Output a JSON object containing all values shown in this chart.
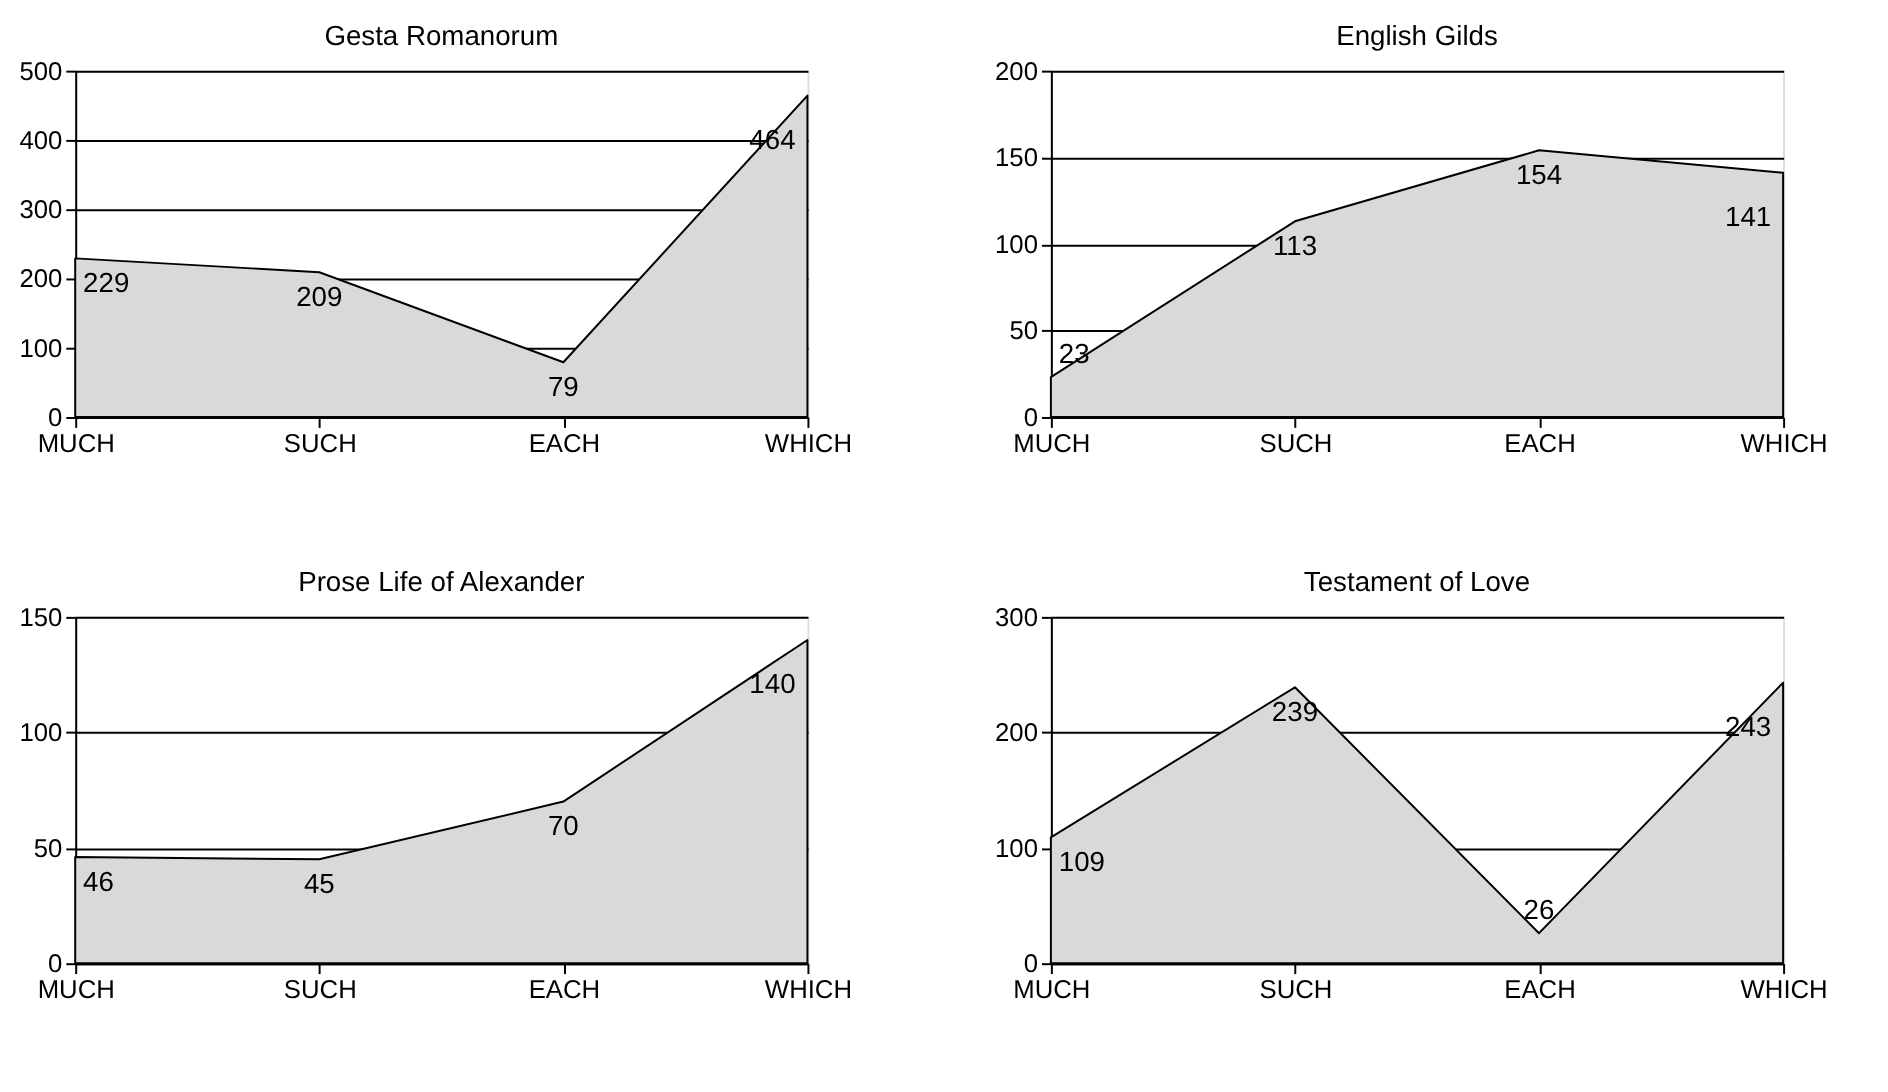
{
  "chart_data": [
    {
      "type": "area",
      "title": "Gesta Romanorum",
      "categories": [
        "MUCH",
        "SUCH",
        "EACH",
        "WHICH"
      ],
      "values": [
        229,
        209,
        79,
        464
      ],
      "color": "#d9d9d9",
      "ylim": [
        0,
        500
      ],
      "yticks": [
        0,
        100,
        200,
        300,
        400,
        500
      ],
      "grid": "y",
      "data_labels": true
    },
    {
      "type": "area",
      "title": "English Gilds",
      "categories": [
        "MUCH",
        "SUCH",
        "EACH",
        "WHICH"
      ],
      "values": [
        23,
        113,
        154,
        141
      ],
      "color": "#d9d9d9",
      "ylim": [
        0,
        200
      ],
      "yticks": [
        0,
        50,
        100,
        150,
        200
      ],
      "grid": "y",
      "data_labels": true
    },
    {
      "type": "area",
      "title": "Prose Life of Alexander",
      "categories": [
        "MUCH",
        "SUCH",
        "EACH",
        "WHICH"
      ],
      "values": [
        46,
        45,
        70,
        140
      ],
      "color": "#d9d9d9",
      "ylim": [
        0,
        150
      ],
      "yticks": [
        0,
        50,
        100,
        150
      ],
      "grid": "y",
      "data_labels": true
    },
    {
      "type": "area",
      "title": "Testament of Love",
      "categories": [
        "MUCH",
        "SUCH",
        "EACH",
        "WHICH"
      ],
      "values": [
        109,
        239,
        26,
        243
      ],
      "color": "#d9d9d9",
      "ylim": [
        0,
        300
      ],
      "yticks": [
        0,
        100,
        200,
        300
      ],
      "grid": "y",
      "data_labels": true
    }
  ]
}
